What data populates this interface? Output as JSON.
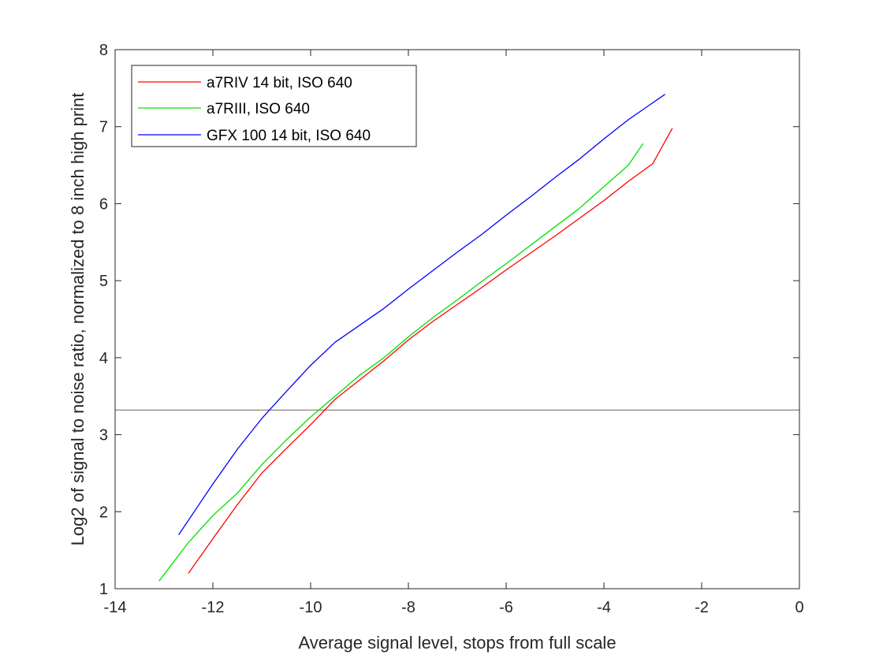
{
  "chart_data": {
    "type": "line",
    "title": "",
    "xlabel": "Average signal level, stops from full scale",
    "ylabel": "Log2 of signal to noise ratio, normalized to 8 inch high print",
    "xlim": [
      -14,
      0
    ],
    "ylim": [
      1,
      8
    ],
    "xticks": [
      -14,
      -12,
      -10,
      -8,
      -6,
      -4,
      -2,
      0
    ],
    "yticks": [
      1,
      2,
      3,
      4,
      5,
      6,
      7,
      8
    ],
    "xtick_labels": [
      "-14",
      "-12",
      "-10",
      "-8",
      "-6",
      "-4",
      "-2",
      "0"
    ],
    "ytick_labels": [
      "1",
      "2",
      "3",
      "4",
      "5",
      "6",
      "7",
      "8"
    ],
    "grid": false,
    "legend_position": "top-left",
    "reference_line": {
      "y": 3.32,
      "color": "#666666"
    },
    "series": [
      {
        "name": "a7RIV 14 bit, ISO 640",
        "color": "#ff0000",
        "x": [
          -12.5,
          -12.0,
          -11.5,
          -11.0,
          -10.5,
          -10.0,
          -9.5,
          -9.0,
          -8.5,
          -8.0,
          -7.5,
          -7.0,
          -6.5,
          -6.0,
          -5.5,
          -5.0,
          -4.5,
          -4.0,
          -3.5,
          -3.0,
          -2.6
        ],
        "y": [
          1.2,
          1.65,
          2.09,
          2.5,
          2.82,
          3.13,
          3.46,
          3.71,
          3.96,
          4.23,
          4.47,
          4.69,
          4.91,
          5.14,
          5.36,
          5.58,
          5.81,
          6.04,
          6.29,
          6.52,
          6.98
        ]
      },
      {
        "name": "a7RIII, ISO 640",
        "color": "#00e000",
        "x": [
          -13.1,
          -12.5,
          -12.0,
          -11.5,
          -11.0,
          -10.5,
          -10.0,
          -9.5,
          -9.0,
          -8.5,
          -8.0,
          -7.5,
          -7.0,
          -6.5,
          -6.0,
          -5.5,
          -5.0,
          -4.5,
          -4.0,
          -3.5,
          -3.2
        ],
        "y": [
          1.1,
          1.6,
          1.95,
          2.24,
          2.61,
          2.93,
          3.23,
          3.5,
          3.77,
          4.0,
          4.27,
          4.52,
          4.75,
          4.99,
          5.22,
          5.46,
          5.7,
          5.94,
          6.22,
          6.5,
          6.78
        ]
      },
      {
        "name": "GFX 100 14 bit, ISO 640",
        "color": "#0000ff",
        "x": [
          -12.7,
          -12.0,
          -11.5,
          -11.0,
          -10.5,
          -10.0,
          -9.5,
          -9.0,
          -8.5,
          -8.0,
          -7.5,
          -7.0,
          -6.5,
          -6.0,
          -5.5,
          -5.0,
          -4.5,
          -4.0,
          -3.5,
          -3.0,
          -2.75
        ],
        "y": [
          1.7,
          2.36,
          2.81,
          3.21,
          3.56,
          3.9,
          4.2,
          4.42,
          4.64,
          4.89,
          5.13,
          5.37,
          5.6,
          5.85,
          6.09,
          6.34,
          6.58,
          6.84,
          7.09,
          7.31,
          7.42
        ]
      }
    ]
  }
}
